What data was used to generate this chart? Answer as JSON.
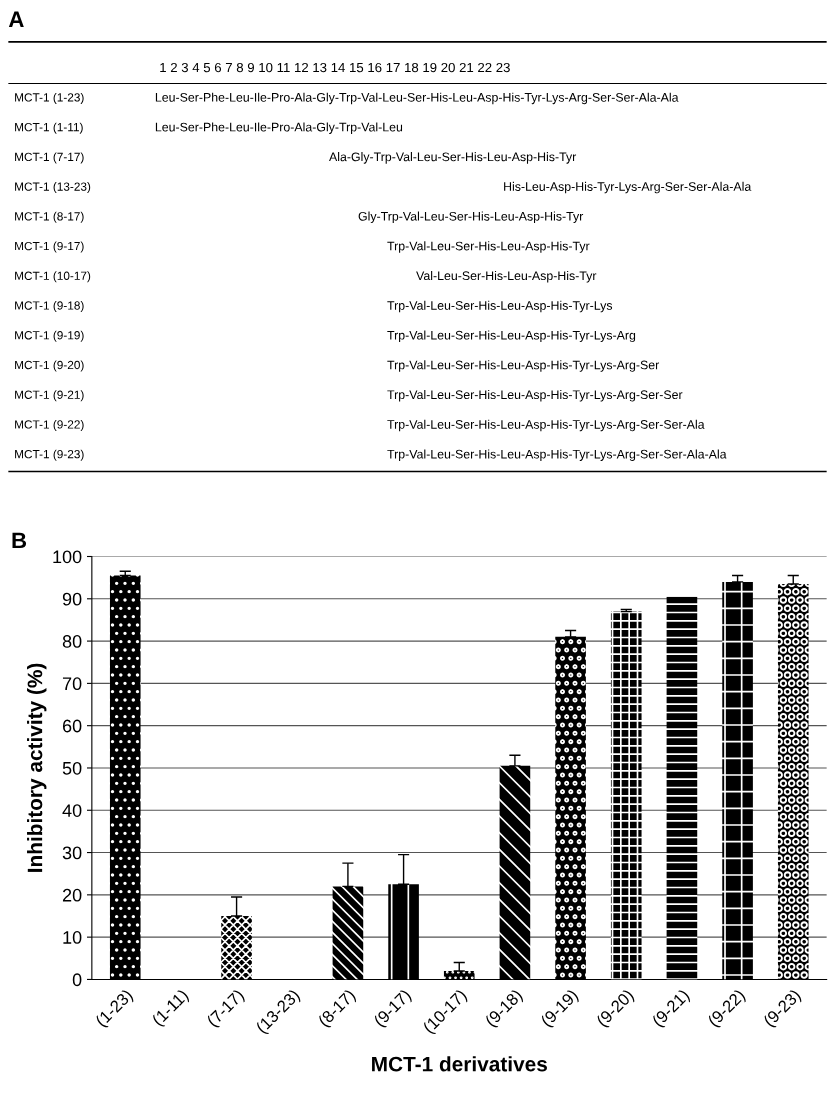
{
  "chart_data": [
    {
      "type": "other",
      "title": "A",
      "y_categories": [
        "MCT-1 (1-23)",
        "MCT-1 (1-11)",
        "MCT-1 (7-17)",
        "MCT-1 (13-23)",
        "MCT-1 (8-17)",
        "MCT-1 (9-17)",
        "MCT-1 (10-17)",
        "MCT-1 (9-18)",
        "MCT-1 (9-19)",
        "MCT-1 (9-20)",
        "MCT-1 (9-21)",
        "MCT-1 (9-22)",
        "MCT-1 (9-23)"
      ],
      "annotations": [
        "1 2 3 4 5 6 7 8 9 10 11 12 13 14 15 16 17 18 19 20 21 22 23",
        "Leu-Ser-Phe-Leu-Ile-Pro-Ala-Gly-Trp-Val-Leu-Ser-His-Leu-Asp-His-Tyr-Lys-Arg-Ser-Ser-Ala-Ala",
        "Leu-Ser-Phe-Leu-Ile-Pro-Ala-Gly-Trp-Val-Leu",
        "Ala-Gly-Trp-Val-Leu-Ser-His-Leu-Asp-His-Tyr",
        "His-Leu-Asp-His-Tyr-Lys-Arg-Ser-Ser-Ala-Ala",
        "Gly-Trp-Val-Leu-Ser-His-Leu-Asp-His-Tyr",
        "Trp-Val-Leu-Ser-His-Leu-Asp-His-Tyr",
        "Val-Leu-Ser-His-Leu-Asp-His-Tyr",
        "Trp-Val-Leu-Ser-His-Leu-Asp-His-Tyr-Lys",
        "Trp-Val-Leu-Ser-His-Leu-Asp-His-Tyr-Lys-Arg",
        "Trp-Val-Leu-Ser-His-Leu-Asp-His-Tyr-Lys-Arg-Ser",
        "Trp-Val-Leu-Ser-His-Leu-Asp-His-Tyr-Lys-Arg-Ser-Ser",
        "Trp-Val-Leu-Ser-His-Leu-Asp-His-Tyr-Lys-Arg-Ser-Ser-Ala",
        "Trp-Val-Leu-Ser-His-Leu-Asp-His-Tyr-Lys-Arg-Ser-Ser-Ala-Ala"
      ]
    },
    {
      "type": "bar",
      "title": "B",
      "xlabel": "MCT-1 derivatives",
      "ylabel": "Inhibitory activity (%)",
      "categories": [
        "(1-23)",
        "(1-11)",
        "(7-17)",
        "(13-23)",
        "(8-17)",
        "(9-17)",
        "(10-17)",
        "(9-18)",
        "(9-19)",
        "(9-20)",
        "(9-21)",
        "(9-22)",
        "(9-23)"
      ],
      "values": [
        95.5,
        0,
        15,
        0,
        22,
        22.5,
        2,
        50.5,
        81,
        87,
        90.5,
        94,
        93.5
      ],
      "errors": [
        1,
        null,
        4.5,
        null,
        5.5,
        7,
        2,
        2.5,
        1.5,
        0.5,
        null,
        1.5,
        2
      ],
      "color": "#000000",
      "ylim": [
        0,
        100
      ],
      "yticks": [
        0,
        10,
        20,
        30,
        40,
        50,
        60,
        70,
        80,
        90,
        100
      ],
      "grid": "y",
      "legend": false
    }
  ]
}
